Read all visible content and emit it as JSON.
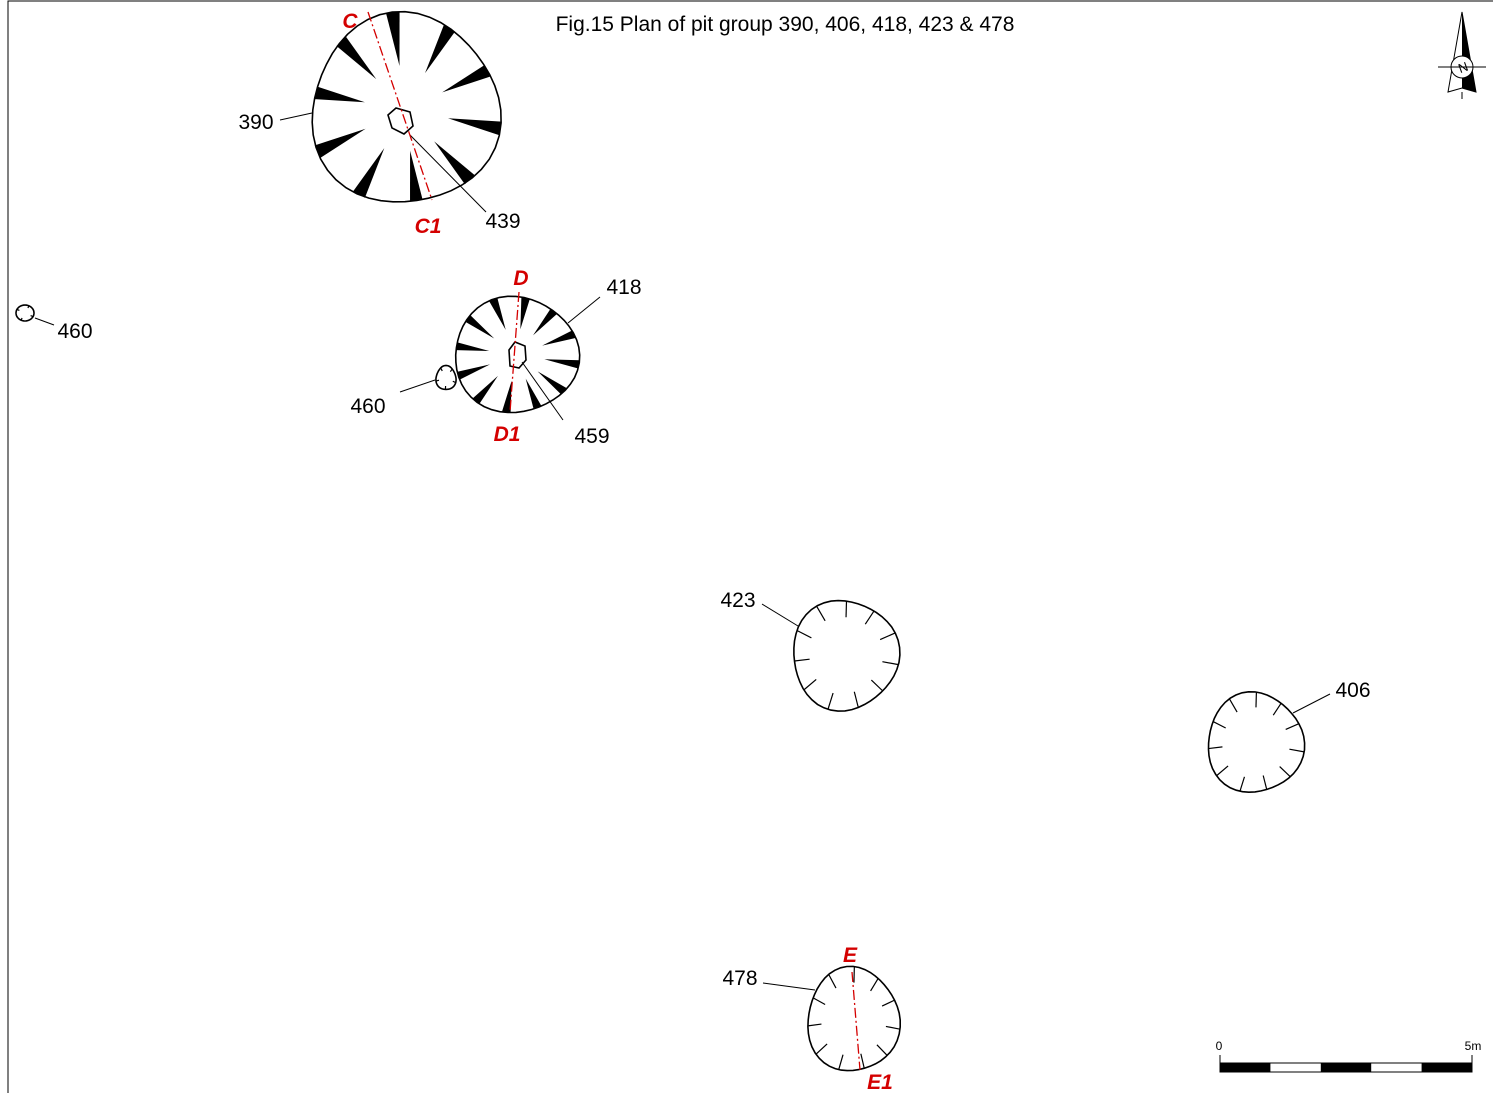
{
  "title": "Fig.15 Plan of pit group 390, 406, 418, 423 & 478",
  "features": [
    {
      "label": "390"
    },
    {
      "label": "439"
    },
    {
      "label": "460"
    },
    {
      "label": "418"
    },
    {
      "label": "460"
    },
    {
      "label": "459"
    },
    {
      "label": "423"
    },
    {
      "label": "406"
    },
    {
      "label": "478"
    }
  ],
  "sections": [
    {
      "start": "C",
      "end": "C1"
    },
    {
      "start": "D",
      "end": "D1"
    },
    {
      "start": "E",
      "end": "E1"
    }
  ],
  "north": "N",
  "scale": {
    "start": "0",
    "end": "5m"
  }
}
